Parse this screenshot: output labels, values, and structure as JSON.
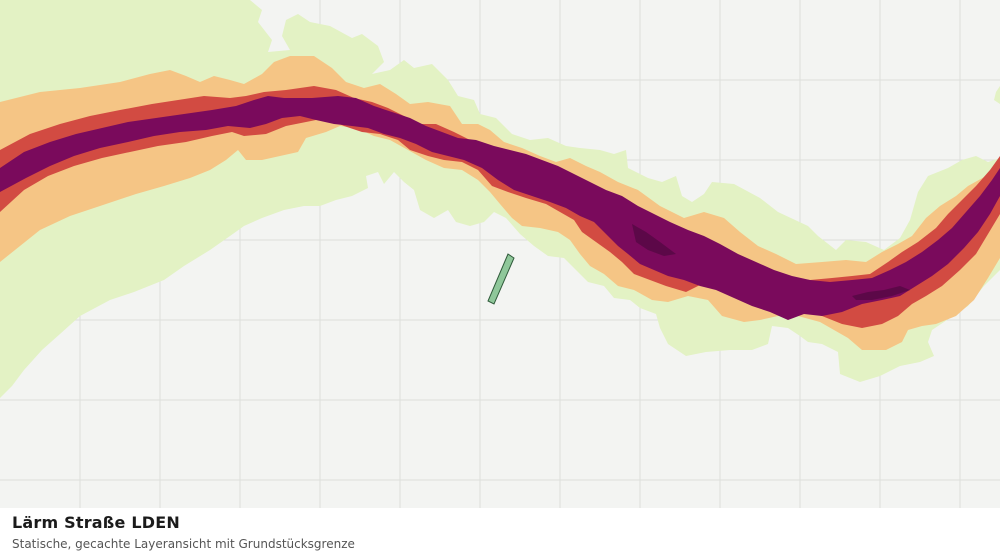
{
  "caption": {
    "title": "Lärm Straße LDEN",
    "subtitle": "Statische, gecachte Layeransicht mit Grundstücksgrenze"
  },
  "map": {
    "base_color": "#f3f4f2",
    "grid_color": "#dcdedb",
    "grid_visible": true,
    "noise_bands": [
      {
        "name": "outer",
        "color": "#e3f2c4"
      },
      {
        "name": "medium",
        "color": "#f5c585"
      },
      {
        "name": "high",
        "color": "#d24b42"
      },
      {
        "name": "very-high",
        "color": "#7a0a5c"
      },
      {
        "name": "peak",
        "color": "#5c0848"
      }
    ],
    "parcel": {
      "fill": "#8fc79a",
      "stroke": "#2f5a3a"
    }
  }
}
